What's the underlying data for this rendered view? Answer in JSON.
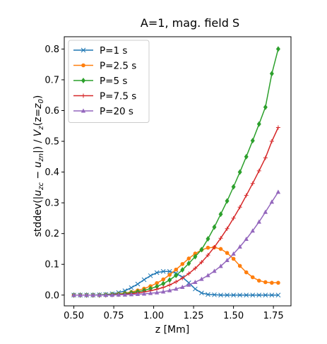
{
  "chart_data": {
    "type": "line",
    "title": "A=1, mag. field S",
    "xlabel": "z [Mm]",
    "ylabel": "stddev(|u_zc − u_zn|) / V_z(z=z_0)",
    "ylabel_parts": {
      "prefix": "stddev(|",
      "u1": "u",
      "sub1": "zc",
      "minus": " − ",
      "u2": "u",
      "sub2": "zn",
      "mid": "|) / ",
      "v": "V",
      "vsub": "z",
      "paren_open": "(z=",
      "z0": "z",
      "z0sub": "0",
      "paren_close": ")"
    },
    "xlim": [
      0.44,
      1.86
    ],
    "ylim": [
      -0.035,
      0.84
    ],
    "x_ticks": [
      "0.50",
      "0.75",
      "1.00",
      "1.25",
      "1.50",
      "1.75"
    ],
    "x_tick_values": [
      0.5,
      0.75,
      1.0,
      1.25,
      1.5,
      1.75
    ],
    "y_ticks": [
      "0.0",
      "0.1",
      "0.2",
      "0.3",
      "0.4",
      "0.5",
      "0.6",
      "0.7",
      "0.8"
    ],
    "y_tick_values": [
      0.0,
      0.1,
      0.2,
      0.3,
      0.4,
      0.5,
      0.6,
      0.7,
      0.8
    ],
    "grid": false,
    "legend_position": "top-left",
    "x": [
      0.5,
      0.54,
      0.58,
      0.62,
      0.66,
      0.7,
      0.74,
      0.78,
      0.82,
      0.86,
      0.9,
      0.94,
      0.98,
      1.02,
      1.06,
      1.1,
      1.14,
      1.18,
      1.22,
      1.26,
      1.3,
      1.34,
      1.38,
      1.42,
      1.46,
      1.5,
      1.54,
      1.58,
      1.62,
      1.66,
      1.7,
      1.74,
      1.78
    ],
    "series": [
      {
        "name": "P=1 s",
        "color": "#1f77b4",
        "marker": "x",
        "values": [
          0.0,
          0.0,
          0.0,
          0.0,
          0.001,
          0.002,
          0.004,
          0.008,
          0.014,
          0.024,
          0.036,
          0.05,
          0.063,
          0.073,
          0.077,
          0.077,
          0.071,
          0.058,
          0.04,
          0.02,
          0.007,
          0.002,
          0.001,
          0.0,
          0.0,
          0.0,
          0.0,
          0.0,
          0.0,
          0.0,
          0.0,
          0.0,
          0.0
        ]
      },
      {
        "name": "P=2.5 s",
        "color": "#ff7f0e",
        "marker": "circle",
        "values": [
          0.0,
          0.0,
          0.0,
          0.0,
          0.0,
          0.001,
          0.002,
          0.004,
          0.006,
          0.01,
          0.015,
          0.021,
          0.029,
          0.039,
          0.051,
          0.066,
          0.083,
          0.101,
          0.119,
          0.135,
          0.147,
          0.154,
          0.155,
          0.15,
          0.137,
          0.118,
          0.095,
          0.074,
          0.058,
          0.047,
          0.042,
          0.04,
          0.04
        ]
      },
      {
        "name": "P=5 s",
        "color": "#2ca02c",
        "marker": "diamond",
        "values": [
          0.0,
          0.0,
          0.0,
          0.0,
          0.0,
          0.001,
          0.002,
          0.003,
          0.005,
          0.008,
          0.011,
          0.015,
          0.021,
          0.028,
          0.037,
          0.049,
          0.064,
          0.082,
          0.103,
          0.125,
          0.148,
          0.183,
          0.221,
          0.263,
          0.306,
          0.352,
          0.4,
          0.45,
          0.502,
          0.556,
          0.611,
          0.72,
          0.8
        ]
      },
      {
        "name": "P=7.5 s",
        "color": "#d62728",
        "marker": "plus",
        "values": [
          0.0,
          0.0,
          0.0,
          0.0,
          0.0,
          0.0,
          0.001,
          0.002,
          0.003,
          0.005,
          0.007,
          0.01,
          0.014,
          0.019,
          0.025,
          0.033,
          0.043,
          0.055,
          0.07,
          0.087,
          0.107,
          0.13,
          0.156,
          0.185,
          0.216,
          0.25,
          0.286,
          0.324,
          0.363,
          0.404,
          0.446,
          0.5,
          0.545
        ]
      },
      {
        "name": "P=20 s",
        "color": "#9467bd",
        "marker": "triangle",
        "values": [
          0.0,
          0.0,
          0.0,
          0.0,
          0.0,
          0.0,
          0.0,
          0.001,
          0.001,
          0.002,
          0.003,
          0.004,
          0.006,
          0.008,
          0.011,
          0.015,
          0.02,
          0.026,
          0.033,
          0.042,
          0.052,
          0.064,
          0.078,
          0.094,
          0.113,
          0.134,
          0.157,
          0.182,
          0.209,
          0.238,
          0.27,
          0.303,
          0.335
        ]
      }
    ]
  }
}
